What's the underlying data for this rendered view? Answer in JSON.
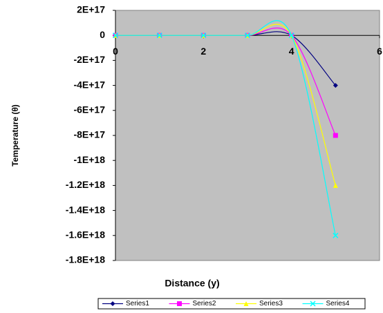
{
  "chart_data": {
    "type": "line",
    "xlabel": "Distance (y)",
    "ylabel": "Temperature (θ)",
    "x": [
      0,
      1,
      2,
      3,
      4,
      5
    ],
    "series": [
      {
        "name": "Series1",
        "color": "#000080",
        "marker": "diamond",
        "values": [
          0,
          0,
          0,
          0,
          0,
          -4e+17
        ]
      },
      {
        "name": "Series2",
        "color": "#ff00ff",
        "marker": "square",
        "values": [
          0,
          0,
          0,
          0,
          0,
          -8e+17
        ]
      },
      {
        "name": "Series3",
        "color": "#ffff00",
        "marker": "triangle",
        "values": [
          0,
          0,
          0,
          0,
          0,
          -1.2e+18
        ]
      },
      {
        "name": "Series4",
        "color": "#00ffff",
        "marker": "x",
        "values": [
          0,
          0,
          0,
          0,
          0,
          -1.6e+18
        ]
      }
    ],
    "xlim": [
      0,
      6
    ],
    "xticks": [
      0,
      2,
      4,
      6
    ],
    "ylim": [
      -1.8e+18,
      2e+17
    ],
    "yticks": [
      {
        "value": 2e+17,
        "label": "2E+17"
      },
      0,
      {
        "value": -2e+17,
        "label": "-2E+17"
      },
      {
        "value": -4e+17,
        "label": "-4E+17"
      },
      {
        "value": -6e+17,
        "label": "-6E+17"
      },
      {
        "value": -8e+17,
        "label": "-8E+17"
      },
      {
        "value": -1e+18,
        "label": "-1E+18"
      },
      {
        "value": -1.2e+18,
        "label": "-1.2E+18"
      },
      {
        "value": -1.4e+18,
        "label": "-1.4E+18"
      },
      {
        "value": -1.6e+18,
        "label": "-1.6E+18"
      },
      {
        "value": -1.8e+18,
        "label": "-1.8E+18"
      }
    ],
    "smooth": true,
    "legend": "bottom",
    "background": "#c0c0c0"
  }
}
